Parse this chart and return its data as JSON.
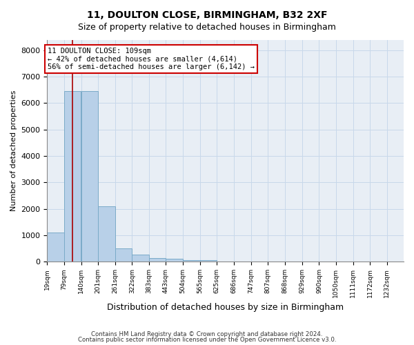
{
  "title1": "11, DOULTON CLOSE, BIRMINGHAM, B32 2XF",
  "title2": "Size of property relative to detached houses in Birmingham",
  "xlabel": "Distribution of detached houses by size in Birmingham",
  "ylabel": "Number of detached properties",
  "footer1": "Contains HM Land Registry data © Crown copyright and database right 2024.",
  "footer2": "Contains public sector information licensed under the Open Government Licence v3.0.",
  "bin_labels": [
    "19sqm",
    "79sqm",
    "140sqm",
    "201sqm",
    "261sqm",
    "322sqm",
    "383sqm",
    "443sqm",
    "504sqm",
    "565sqm",
    "625sqm",
    "686sqm",
    "747sqm",
    "807sqm",
    "868sqm",
    "929sqm",
    "990sqm",
    "1050sqm",
    "1111sqm",
    "1172sqm",
    "1232sqm"
  ],
  "bin_edges": [
    19,
    79,
    140,
    201,
    261,
    322,
    383,
    443,
    504,
    565,
    625,
    686,
    747,
    807,
    868,
    929,
    990,
    1050,
    1111,
    1172,
    1232
  ],
  "bar_heights": [
    1100,
    6450,
    6450,
    2100,
    500,
    270,
    130,
    105,
    55,
    55,
    12,
    8,
    5,
    3,
    2,
    2,
    1,
    1,
    0,
    0,
    0
  ],
  "bar_color": "#b8d0e8",
  "bar_edgecolor": "#7aaac8",
  "property_value": 109,
  "vline_color": "#aa0000",
  "annotation_line1": "11 DOULTON CLOSE: 109sqm",
  "annotation_line2": "← 42% of detached houses are smaller (4,614)",
  "annotation_line3": "56% of semi-detached houses are larger (6,142) →",
  "annotation_box_color": "#cc0000",
  "ylim": [
    0,
    8400
  ],
  "yticks": [
    0,
    1000,
    2000,
    3000,
    4000,
    5000,
    6000,
    7000,
    8000
  ],
  "grid_color": "#c8d8ea",
  "bg_color": "#e8eef5"
}
